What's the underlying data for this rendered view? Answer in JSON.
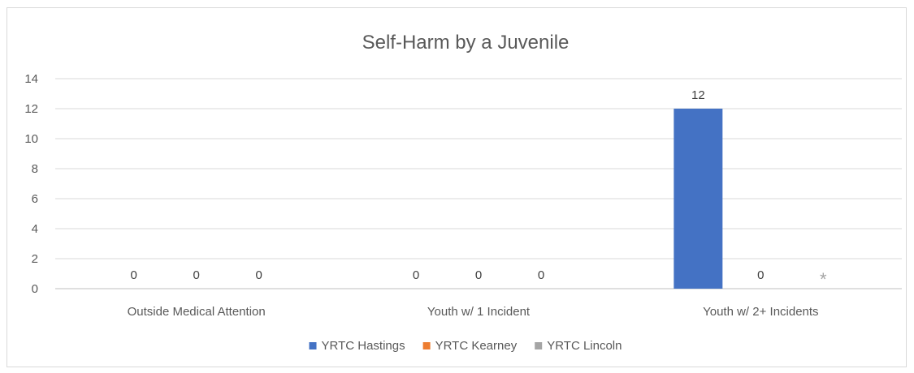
{
  "chart_data": {
    "type": "bar",
    "title": "Self-Harm by a Juvenile",
    "categories": [
      "Outside Medical Attention",
      "Youth w/ 1 Incident",
      "Youth w/ 2+ Incidents"
    ],
    "series": [
      {
        "name": "YRTC Hastings",
        "color": "#4472c4",
        "values": [
          0,
          0,
          12
        ],
        "labels": [
          "0",
          "0",
          "12"
        ]
      },
      {
        "name": "YRTC Kearney",
        "color": "#ed7d31",
        "values": [
          0,
          0,
          0
        ],
        "labels": [
          "0",
          "0",
          "0"
        ]
      },
      {
        "name": "YRTC Lincoln",
        "color": "#a5a5a5",
        "values": [
          0,
          0,
          null
        ],
        "labels": [
          "0",
          "0",
          "*"
        ]
      }
    ],
    "ylim": [
      0,
      14
    ],
    "yticks": [
      0,
      2,
      4,
      6,
      8,
      10,
      12,
      14
    ],
    "xlabel": "",
    "ylabel": "",
    "grid": true,
    "legend_position": "bottom"
  }
}
